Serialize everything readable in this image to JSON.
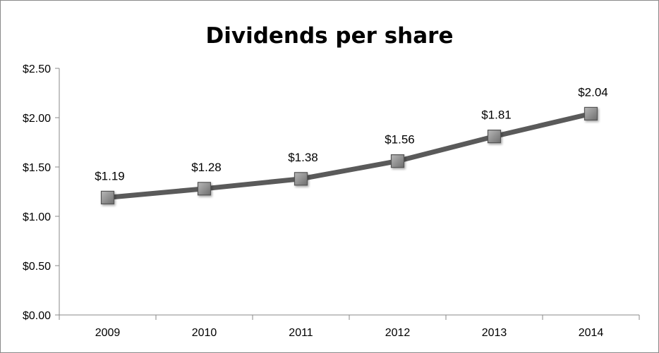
{
  "chart_data": {
    "type": "line",
    "title": "Dividends per share",
    "xlabel": "",
    "ylabel": "",
    "categories": [
      "2009",
      "2010",
      "2011",
      "2012",
      "2013",
      "2014"
    ],
    "series": [
      {
        "values": [
          1.19,
          1.28,
          1.38,
          1.56,
          1.81,
          2.04
        ],
        "data_labels": [
          "$1.19",
          "$1.28",
          "$1.38",
          "$1.56",
          "$1.81",
          "$2.04"
        ]
      }
    ],
    "ylim": [
      0,
      2.5
    ],
    "y_ticks": [
      0,
      0.5,
      1.0,
      1.5,
      2.0,
      2.5
    ],
    "y_tick_labels": [
      "$0.00",
      "$0.50",
      "$1.00",
      "$1.50",
      "$2.00",
      "$2.50"
    ],
    "grid": false,
    "legend": "none",
    "line_color": "#5a5a5a",
    "marker": "square",
    "marker_color": "#8c8c8c"
  }
}
